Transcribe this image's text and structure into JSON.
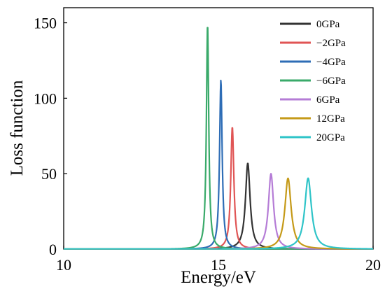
{
  "chart_data": {
    "type": "line",
    "title": "",
    "xlabel": "Energy/eV",
    "ylabel": "Loss function",
    "xlim": [
      10,
      20
    ],
    "ylim": [
      0,
      160
    ],
    "xticks": [
      10,
      15,
      20
    ],
    "yticks": [
      0,
      50,
      100,
      150
    ],
    "grid": false,
    "legend_position": "top-right",
    "series": [
      {
        "name": "0GPa",
        "color": "#333333",
        "peak_x": 15.95,
        "peak_y": 57,
        "width": 0.09
      },
      {
        "name": "−2GPa",
        "color": "#e05555",
        "peak_x": 15.45,
        "peak_y": 81,
        "width": 0.06
      },
      {
        "name": "−4GPa",
        "color": "#2e6db6",
        "peak_x": 15.08,
        "peak_y": 112,
        "width": 0.05
      },
      {
        "name": "−6GPa",
        "color": "#3aaa6a",
        "peak_x": 14.65,
        "peak_y": 149,
        "width": 0.045
      },
      {
        "name": "6GPa",
        "color": "#b57cd6",
        "peak_x": 16.7,
        "peak_y": 50,
        "width": 0.1
      },
      {
        "name": "12GPa",
        "color": "#c59a18",
        "peak_x": 17.25,
        "peak_y": 47,
        "width": 0.12
      },
      {
        "name": "20GPa",
        "color": "#2fc4c8",
        "peak_x": 17.9,
        "peak_y": 47,
        "width": 0.13
      }
    ]
  }
}
